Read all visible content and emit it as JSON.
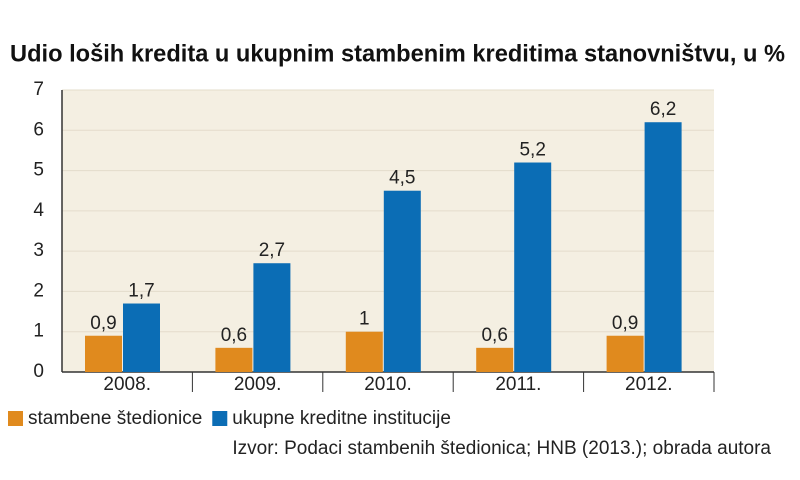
{
  "chart_data": {
    "type": "bar",
    "title": "Udio loših kredita u ukupnim stambenim kreditima stanovništvu, u %",
    "categories": [
      "2008.",
      "2009.",
      "2010.",
      "2011.",
      "2012."
    ],
    "series": [
      {
        "name": "stambene štedionice",
        "color": "#e08a1e",
        "values": [
          0.9,
          0.6,
          1,
          0.6,
          0.9
        ],
        "value_labels": [
          "0,9",
          "0,6",
          "1",
          "0,6",
          "0,9"
        ]
      },
      {
        "name": "ukupne kreditne institucije",
        "color": "#0b6db5",
        "values": [
          1.7,
          2.7,
          4.5,
          5.2,
          6.2
        ],
        "value_labels": [
          "1,7",
          "2,7",
          "4,5",
          "5,2",
          "6,2"
        ]
      }
    ],
    "ylim": [
      0,
      7
    ],
    "yticks": [
      0,
      1,
      2,
      3,
      4,
      5,
      6,
      7
    ],
    "grid": true,
    "legend": "bottom-left",
    "source": "Izvor: Podaci stambenih štedionica; HNB (2013.); obrada autora"
  }
}
